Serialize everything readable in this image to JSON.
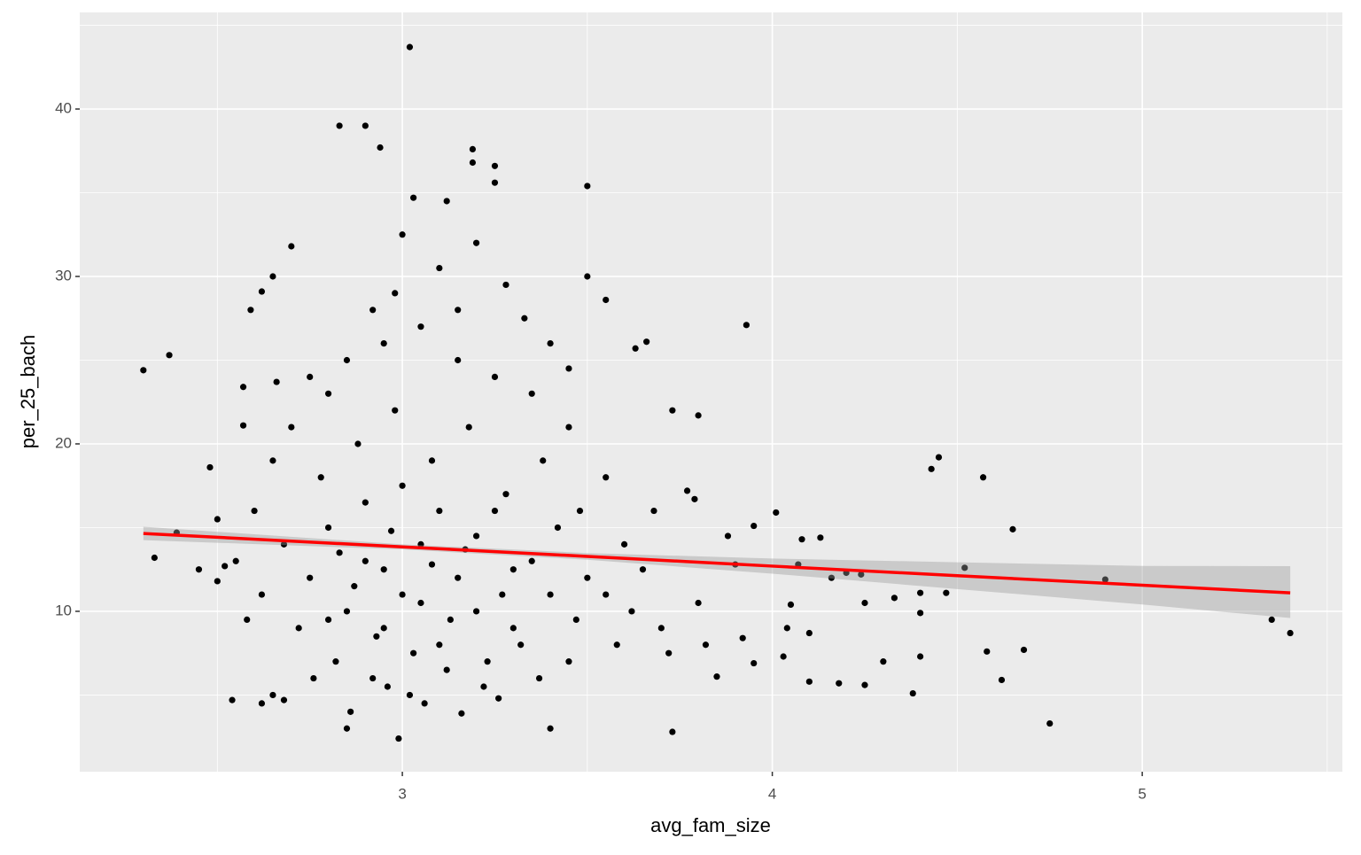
{
  "chart_data": {
    "type": "scatter",
    "x_label": "avg_fam_size",
    "y_label": "per_25_bach",
    "xlim": [
      2.128,
      5.541
    ],
    "ylim": [
      0.42,
      45.77
    ],
    "xticks": [
      3,
      4,
      5
    ],
    "yticks": [
      10,
      20,
      30,
      40
    ],
    "x_minor_ticks": [
      2.5,
      3.5,
      4.5,
      5.5
    ],
    "y_minor_ticks": [
      5,
      15,
      25,
      35,
      45
    ],
    "grid": true,
    "point_color": "#000000",
    "x": [
      2.3,
      2.37,
      2.33,
      2.39,
      2.48,
      2.5,
      2.52,
      2.54,
      2.57,
      2.57,
      2.59,
      2.62,
      2.62,
      2.65,
      2.66,
      2.7,
      2.68,
      2.65,
      2.9,
      2.83,
      2.94,
      3.02,
      3.03,
      3.19,
      3.19,
      3.25,
      3.25,
      3.5,
      3.5,
      3.55,
      3.93,
      3.8,
      3.73,
      3.66,
      3.63,
      3.95,
      4.01,
      4.08,
      4.13,
      4.16,
      4.2,
      4.24,
      4.25,
      4.3,
      4.33,
      4.4,
      4.4,
      4.4,
      4.43,
      4.45,
      4.47,
      4.52,
      4.57,
      4.58,
      4.62,
      4.65,
      4.68,
      4.75,
      4.9,
      5.35,
      5.4,
      3.73,
      3.4,
      2.99,
      2.85,
      4.1,
      4.05,
      4.1,
      4.18,
      4.25,
      4.38,
      3.85,
      3.92,
      3.95,
      4.03,
      4.04,
      4.07,
      3.88,
      3.9,
      3.77,
      3.79,
      2.75,
      2.8,
      2.85,
      2.9,
      2.95,
      3.0,
      3.05,
      3.1,
      3.15,
      3.2,
      3.25,
      3.3,
      3.35,
      3.4,
      3.45,
      2.78,
      2.88,
      2.98,
      3.08,
      3.18,
      3.28,
      3.38,
      2.82,
      2.92,
      3.02,
      3.12,
      3.22,
      3.32,
      2.72,
      2.68,
      2.62,
      2.6,
      2.65,
      2.7,
      2.75,
      2.85,
      2.95,
      3.05,
      3.15,
      3.25,
      3.35,
      3.45,
      3.55,
      3.6,
      3.62,
      3.58,
      3.5,
      3.48,
      3.42,
      2.9,
      3.0,
      3.1,
      3.2,
      3.3,
      2.95,
      3.05,
      2.87,
      2.93,
      3.03,
      3.13,
      3.23,
      3.08,
      2.97,
      3.17,
      3.27,
      2.83,
      2.8,
      2.76,
      3.37,
      3.47,
      3.55,
      3.65,
      3.7,
      3.68,
      3.72,
      3.8,
      3.82,
      2.55,
      2.58,
      2.5,
      2.45,
      2.98,
      3.1,
      3.2,
      3.28,
      3.0,
      3.12,
      2.92,
      2.8,
      3.4,
      3.45,
      3.33,
      3.15,
      2.86,
      3.06,
      3.26,
      3.16,
      2.96
    ],
    "y": [
      24.4,
      25.3,
      13.2,
      14.7,
      18.6,
      11.8,
      12.7,
      4.7,
      23.4,
      21.1,
      28,
      4.5,
      29.1,
      30,
      23.7,
      31.8,
      4.7,
      5,
      39,
      39,
      37.7,
      43.7,
      34.7,
      37.6,
      36.8,
      36.6,
      35.6,
      35.4,
      30,
      28.6,
      27.1,
      21.7,
      22,
      26.1,
      25.7,
      15.1,
      15.9,
      14.3,
      14.4,
      12,
      12.3,
      12.2,
      10.5,
      7,
      10.8,
      11.1,
      9.9,
      7.3,
      18.5,
      19.2,
      11.1,
      12.6,
      18,
      7.6,
      5.9,
      14.9,
      7.7,
      3.3,
      11.9,
      9.5,
      8.7,
      2.8,
      3,
      2.4,
      3,
      8.7,
      10.4,
      5.8,
      5.7,
      5.6,
      5.1,
      6.1,
      8.4,
      6.9,
      7.3,
      9,
      12.8,
      14.5,
      12.8,
      17.2,
      16.7,
      12,
      15,
      10,
      13,
      9,
      11,
      14,
      8,
      12,
      10,
      16,
      9,
      13,
      11,
      7,
      18,
      20,
      22,
      19,
      21,
      17,
      19,
      7,
      6,
      5,
      6.5,
      5.5,
      8,
      9,
      14,
      11,
      16,
      19,
      21,
      24,
      25,
      26,
      27,
      25,
      24,
      23,
      21,
      18,
      14,
      10,
      8,
      12,
      16,
      15,
      16.5,
      17.5,
      16,
      14.5,
      12.5,
      12.5,
      10.5,
      11.5,
      8.5,
      7.5,
      9.5,
      7,
      12.8,
      14.8,
      13.7,
      11,
      13.5,
      9.5,
      6,
      6,
      9.5,
      11,
      12.5,
      9,
      16,
      7.5,
      10.5,
      8,
      13,
      9.5,
      15.5,
      12.5,
      29,
      30.5,
      32,
      29.5,
      32.5,
      34.5,
      28,
      23,
      26,
      24.5,
      27.5,
      28,
      4,
      4.5,
      4.8,
      3.9,
      5.5
    ],
    "fit": {
      "color": "#ff0000",
      "band_color": "#999999",
      "x": [
        2.3,
        3.0,
        3.5,
        4.0,
        4.5,
        5.0,
        5.4
      ],
      "y": [
        14.65,
        13.85,
        13.28,
        12.7,
        12.13,
        11.56,
        11.1
      ],
      "lower": [
        14.25,
        13.7,
        13.08,
        12.25,
        11.33,
        10.41,
        9.6
      ],
      "upper": [
        15.05,
        14.0,
        13.48,
        13.15,
        12.93,
        12.71,
        12.7
      ]
    }
  }
}
